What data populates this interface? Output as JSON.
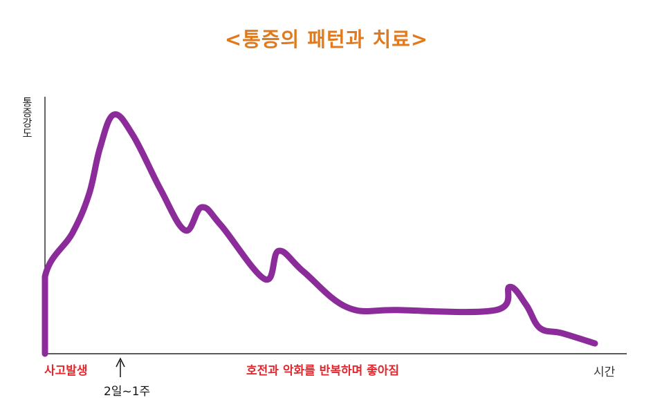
{
  "chart_data": {
    "type": "line",
    "title": "<통증의 패턴과 치료>",
    "ylabel": "통증강도",
    "xlabel": "시간",
    "series": [
      {
        "color": "#8b2c9a",
        "points": [
          [
            0,
            0
          ],
          [
            0,
            0.3
          ],
          [
            0.05,
            0.47
          ],
          [
            0.08,
            0.62
          ],
          [
            0.1,
            0.8
          ],
          [
            0.125,
            0.93
          ],
          [
            0.16,
            0.85
          ],
          [
            0.21,
            0.64
          ],
          [
            0.255,
            0.48
          ],
          [
            0.285,
            0.57
          ],
          [
            0.32,
            0.5
          ],
          [
            0.4,
            0.29
          ],
          [
            0.425,
            0.4
          ],
          [
            0.47,
            0.32
          ],
          [
            0.55,
            0.18
          ],
          [
            0.64,
            0.17
          ],
          [
            0.82,
            0.17
          ],
          [
            0.845,
            0.26
          ],
          [
            0.875,
            0.19
          ],
          [
            0.9,
            0.1
          ],
          [
            0.94,
            0.08
          ],
          [
            1.0,
            0.04
          ]
        ]
      }
    ],
    "annotations": {
      "accident": "사고발생",
      "peak": "2일~1주",
      "course": "호전과 악화를 반복하며 좋아짐"
    }
  }
}
